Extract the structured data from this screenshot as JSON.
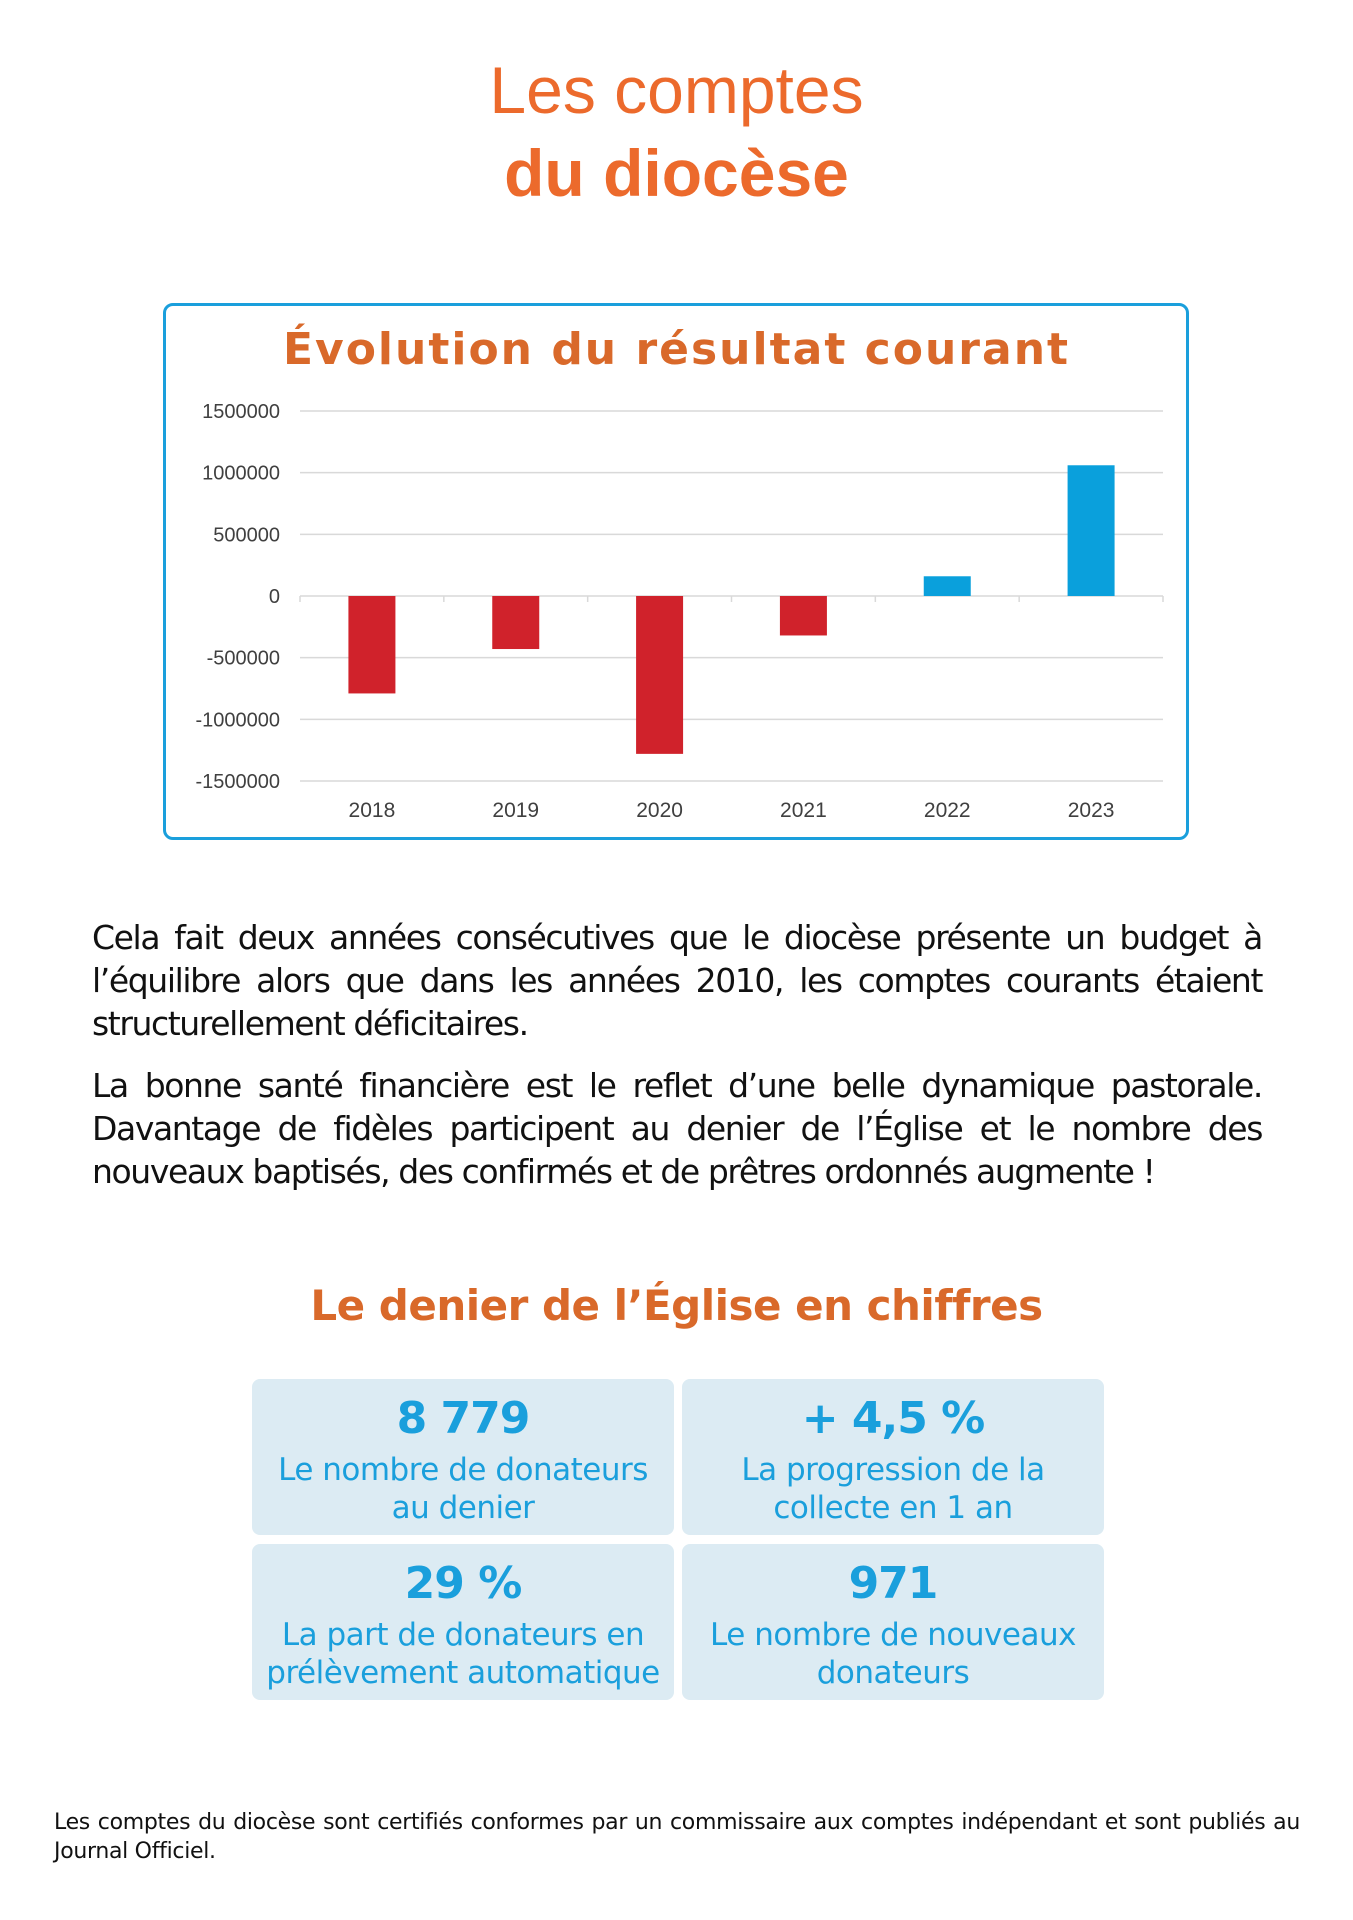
{
  "header": {
    "title_line1": "Les comptes",
    "title_line2": "du diocèse"
  },
  "chart_data": {
    "type": "bar",
    "title": "Évolution du résultat courant",
    "categories": [
      "2018",
      "2019",
      "2020",
      "2021",
      "2022",
      "2023"
    ],
    "values": [
      -790000,
      -430000,
      -1280000,
      -320000,
      160000,
      1060000
    ],
    "colors": [
      "#d0222b",
      "#d0222b",
      "#d0222b",
      "#d0222b",
      "#0aa0dc",
      "#0aa0dc"
    ],
    "yticks": [
      "1500000",
      "1000000",
      "500000",
      "0",
      "-500000",
      "-1000000",
      "-1500000"
    ],
    "ylim": [
      -1500000,
      1500000
    ],
    "xlabel": "",
    "ylabel": "",
    "grid": true,
    "legend": false
  },
  "body": {
    "paragraph1": "Cela fait deux années consécutives que le diocèse présente un budget à l’équilibre alors que dans les années 2010, les comptes courants étaient structurellement déficitaires.",
    "paragraph2": "La bonne santé financière est le reflet d’une belle dynamique pastorale. Davantage de fidèles participent au denier de l’Église et le nombre des nouveaux baptisés, des confirmés et de prêtres ordonnés augmente !"
  },
  "stats": {
    "title": "Le denier de l’Église en chiffres",
    "items": [
      {
        "value": "8 779",
        "label": "Le nombre de donateurs au denier"
      },
      {
        "value": "+ 4,5 %",
        "label": "La progression de la collecte en 1 an"
      },
      {
        "value": "29 %",
        "label": "La part de donateurs en prélèvement automatique"
      },
      {
        "value": "971",
        "label": "Le nombre de nouveaux donateurs"
      }
    ]
  },
  "footer": {
    "note": "Les comptes du diocèse sont certifiés conformes par un commissaire aux comptes indépendant et sont publiés au Journal Officiel."
  }
}
